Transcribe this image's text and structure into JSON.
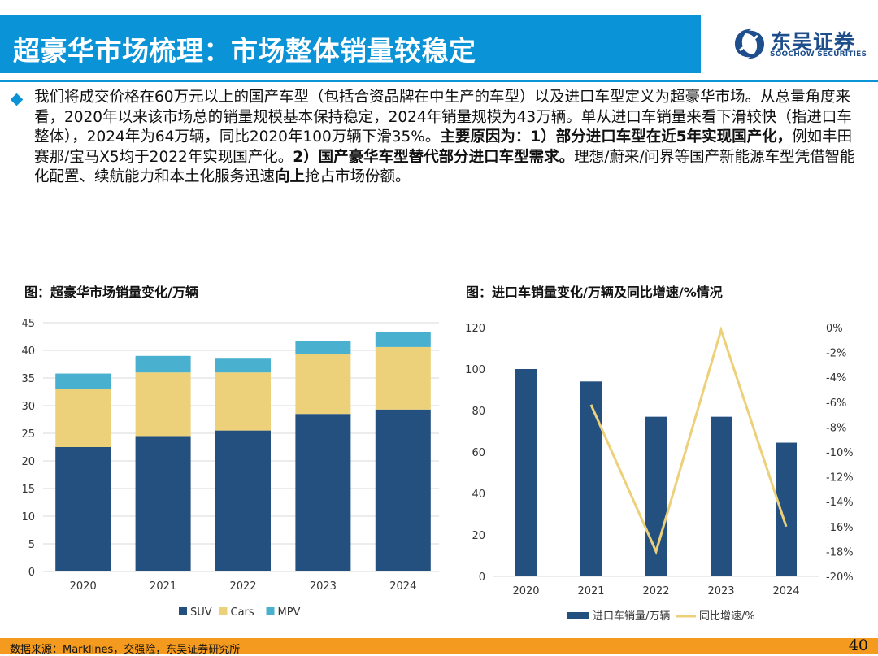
{
  "header": {
    "title": "超豪华市场梳理：市场整体销量较稳定",
    "logo_cn": "东吴证券",
    "logo_en": "SOOCHOW SECURITIES"
  },
  "body": {
    "p1": "我们将成交价格在60万元以上的国产车型（包括合资品牌在中生产的车型）以及进口车型定义为超豪华市场。从总量角度来看，2020年以来该市场总的销量规模基本保持稳定，2024年销量规模为43万辆。单从进口车销量来看下滑较快（指进口车整体），2024年为64万辆，同比2020年100万辆下滑35%。",
    "p2": "主要原因为：1）部分进口车型在近5年实现国产化，",
    "p3": "例如丰田赛那/宝马X5均于2022年实现国产化。",
    "p4": "2）国产豪华车型替代部分进口车型需求。",
    "p5": "理想/蔚来/问界等国产新能源车型凭借智能化配置、续航能力和本土化服务迅速",
    "p6": "向上",
    "p7": "抢占市场份额。"
  },
  "chart1_title": "图：超豪华市场销量变化/万辆",
  "chart2_title": "图：进口车销量变化/万辆及同比增速/%情况",
  "chart_data": [
    {
      "type": "bar",
      "stacked": true,
      "categories": [
        "2020",
        "2021",
        "2022",
        "2023",
        "2024"
      ],
      "series": [
        {
          "name": "SUV",
          "values": [
            22.5,
            24.5,
            25.5,
            28.5,
            29.3
          ],
          "color": "#24507f"
        },
        {
          "name": "Cars",
          "values": [
            10.5,
            11.5,
            10.5,
            10.8,
            11.3
          ],
          "color": "#edd17a"
        },
        {
          "name": "MPV",
          "values": [
            2.8,
            3.0,
            2.5,
            2.4,
            2.7
          ],
          "color": "#4ab0cf"
        }
      ],
      "yticks": [
        "0",
        "5",
        "10",
        "15",
        "20",
        "25",
        "30",
        "35",
        "40",
        "45"
      ],
      "ylim": [
        0,
        45
      ],
      "legend": "bottom"
    },
    {
      "type": "bar",
      "categories": [
        "2020",
        "2021",
        "2022",
        "2023",
        "2024"
      ],
      "series": [
        {
          "name": "进口车销量/万辆",
          "type": "bar",
          "axis": "left",
          "values": [
            100,
            94,
            77,
            77,
            64.5
          ],
          "color": "#24507f"
        },
        {
          "name": "同比增速/%",
          "type": "line",
          "axis": "right",
          "values": [
            null,
            -6.2,
            -18.0,
            -0.2,
            -16.0
          ],
          "color": "#edd17a"
        }
      ],
      "yticks_left": [
        "0",
        "20",
        "40",
        "60",
        "80",
        "100",
        "120"
      ],
      "yticks_right": [
        "-20%",
        "-18%",
        "-16%",
        "-14%",
        "-12%",
        "-10%",
        "-8%",
        "-6%",
        "-4%",
        "-2%",
        "0%"
      ],
      "ylim_left": [
        0,
        120
      ],
      "ylim_right": [
        -20,
        0
      ],
      "legend": "bottom"
    }
  ],
  "footer": {
    "source": "数据来源：Marklines，交强险，东吴证券研究所",
    "page": "40"
  }
}
